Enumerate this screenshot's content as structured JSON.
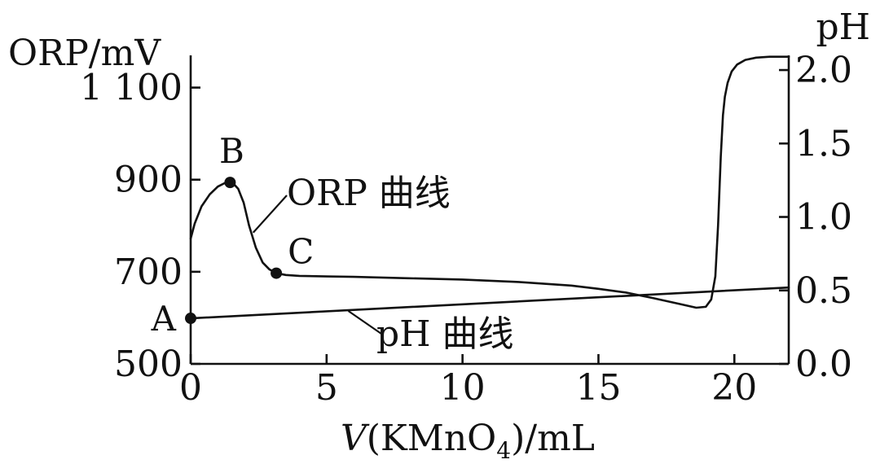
{
  "chart_data": {
    "type": "line",
    "xlabel": {
      "var": "V",
      "main": "(KMnO",
      "sub": "4",
      "rest": ")/mL"
    },
    "ylabel_left": "ORP/mV",
    "ylabel_right": "pH",
    "xlim": [
      0,
      22
    ],
    "ylim_left": [
      500,
      1170
    ],
    "ylim_right": [
      0.0,
      2.1
    ],
    "x_ticks": [
      {
        "v": 0,
        "label": "0"
      },
      {
        "v": 5,
        "label": "5"
      },
      {
        "v": 10,
        "label": "10"
      },
      {
        "v": 15,
        "label": "15"
      },
      {
        "v": 20,
        "label": "20"
      }
    ],
    "y_left_ticks": [
      {
        "v": 500,
        "label": "500"
      },
      {
        "v": 700,
        "label": "700"
      },
      {
        "v": 900,
        "label": "900"
      },
      {
        "v": 1100,
        "label": "1 100"
      }
    ],
    "y_right_ticks": [
      {
        "v": 0.0,
        "label": "0.0"
      },
      {
        "v": 0.5,
        "label": "0.5"
      },
      {
        "v": 1.0,
        "label": "1.0"
      },
      {
        "v": 1.5,
        "label": "1.5"
      },
      {
        "v": 2.0,
        "label": "2.0"
      }
    ],
    "series": [
      {
        "name": "ORP 曲线",
        "axis": "left",
        "x": [
          0,
          0.15,
          0.4,
          0.7,
          1.0,
          1.3,
          1.55,
          1.75,
          1.95,
          2.15,
          2.4,
          2.65,
          2.9,
          3.15,
          3.5,
          4.0,
          5,
          6,
          8,
          10,
          12,
          14,
          15,
          16,
          17,
          18,
          18.6,
          18.95,
          19.15,
          19.3,
          19.4,
          19.5,
          19.58,
          19.65,
          19.75,
          19.9,
          20.1,
          20.4,
          20.8,
          21.3,
          22
        ],
        "y": [
          772,
          805,
          842,
          868,
          885,
          894,
          893,
          880,
          850,
          800,
          752,
          720,
          705,
          697,
          693,
          691,
          690,
          689,
          686,
          683,
          678,
          670,
          663,
          655,
          643,
          630,
          622,
          624,
          640,
          690,
          800,
          950,
          1040,
          1080,
          1110,
          1135,
          1150,
          1160,
          1165,
          1167,
          1167
        ]
      },
      {
        "name": "pH 曲线",
        "axis": "right",
        "x": [
          0,
          22
        ],
        "y": [
          0.31,
          0.52
        ]
      }
    ],
    "points": [
      {
        "label": "A",
        "series": "pH 曲线",
        "x": 0,
        "y": 0.31
      },
      {
        "label": "B",
        "series": "ORP 曲线",
        "x": 1.45,
        "y": 894
      },
      {
        "label": "C",
        "series": "ORP 曲线",
        "x": 3.15,
        "y": 697
      }
    ],
    "annotations": [
      {
        "text": "ORP 曲线",
        "series": "ORP 曲线"
      },
      {
        "text": "pH 曲线",
        "series": "pH 曲线"
      }
    ],
    "grid": false
  }
}
